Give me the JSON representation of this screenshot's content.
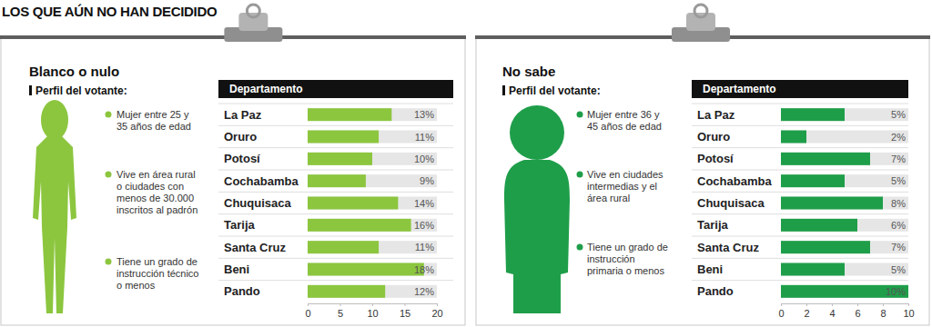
{
  "title": "LOS QUE AÚN NO HAN DECIDIDO",
  "chart_data": [
    {
      "type": "bar",
      "orientation": "horizontal",
      "title": "Blanco o nulo",
      "subtitle": "Perfil del votante:",
      "annotations": [
        "Mujer entre 25 y 35 años de edad",
        "Vive en área rural o ciudades con menos de 30.000 inscritos al padrón",
        "Tiene un grado de instrucción técnico o menos"
      ],
      "ylabel": "Departamento",
      "categories": [
        "La Paz",
        "Oruro",
        "Potosí",
        "Cochabamba",
        "Chuquisaca",
        "Tarija",
        "Santa Cruz",
        "Beni",
        "Pando"
      ],
      "values": [
        13,
        11,
        10,
        9,
        14,
        16,
        11,
        18,
        12
      ],
      "value_labels": [
        "13%",
        "11%",
        "10%",
        "9%",
        "14%",
        "16%",
        "11%",
        "18%",
        "12%"
      ],
      "data_labels": true,
      "color": "#8cc63f",
      "xlim": [
        0,
        20
      ],
      "xticks": [
        0,
        5,
        10,
        15,
        20
      ],
      "grid": false
    },
    {
      "type": "bar",
      "orientation": "horizontal",
      "title": "No sabe",
      "subtitle": "Perfil del votante:",
      "annotations": [
        "Mujer entre 36 y 45 años de edad",
        "Vive en ciudades intermedias y el área rural",
        "Tiene un grado de instrucción primaria o menos"
      ],
      "ylabel": "Departamento",
      "categories": [
        "La Paz",
        "Oruro",
        "Potosí",
        "Cochabamba",
        "Chuquisaca",
        "Tarija",
        "Santa Cruz",
        "Beni",
        "Pando"
      ],
      "values": [
        5,
        2,
        7,
        5,
        8,
        6,
        7,
        5,
        10
      ],
      "value_labels": [
        "5%",
        "2%",
        "7%",
        "5%",
        "8%",
        "6%",
        "7%",
        "5%",
        "10%"
      ],
      "data_labels": true,
      "color": "#1f9e4a",
      "xlim": [
        0,
        10
      ],
      "xticks": [
        0,
        2,
        4,
        6,
        8,
        10
      ],
      "grid": false
    }
  ]
}
